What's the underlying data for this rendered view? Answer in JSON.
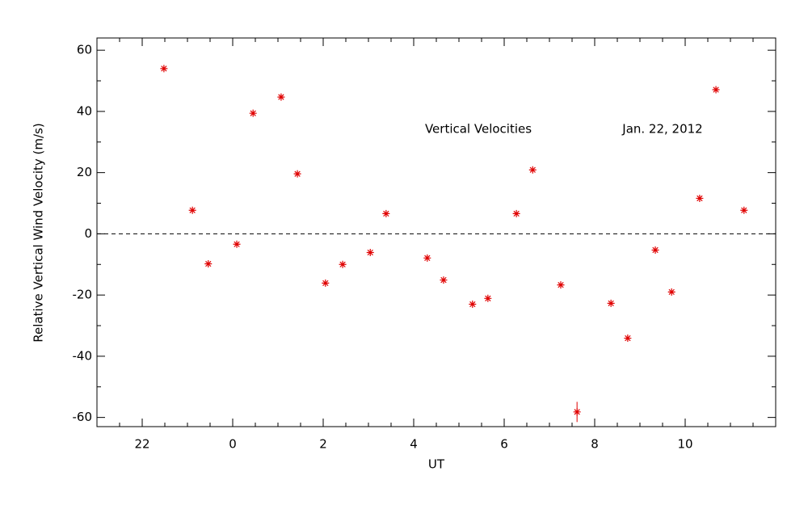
{
  "chart_data": {
    "type": "scatter",
    "y_label": "Relative Vertical Wind Velocity (m/s)",
    "x_label": "UT",
    "annotations": [
      "Vertical Velocities",
      "Jan. 22, 2012"
    ],
    "xlim": [
      21,
      36
    ],
    "ylim": [
      -63,
      64
    ],
    "xticks": [
      22,
      {
        "value": 24,
        "label": "0"
      },
      {
        "value": 26,
        "label": "2"
      },
      {
        "value": 28,
        "label": "4"
      },
      {
        "value": 30,
        "label": "6"
      },
      {
        "value": 32,
        "label": "8"
      },
      {
        "value": 34,
        "label": "10"
      }
    ],
    "yticks": [
      -60,
      -40,
      -20,
      0,
      20,
      40,
      60
    ],
    "reference_line": 0,
    "color": "#e00000",
    "x": [
      22.48,
      23.11,
      23.46,
      24.09,
      24.45,
      25.07,
      25.43,
      26.05,
      26.43,
      27.04,
      27.39,
      28.3,
      28.66,
      29.3,
      29.64,
      30.27,
      30.63,
      31.25,
      31.61,
      32.36,
      32.73,
      33.34,
      33.7,
      34.32,
      34.68,
      35.3
    ],
    "values": [
      54,
      7.7,
      -9.8,
      -3.4,
      39.4,
      44.7,
      19.6,
      -16.1,
      -10,
      -6.1,
      6.6,
      -7.9,
      -15.1,
      -23,
      -21.1,
      6.6,
      20.9,
      -16.7,
      -58.2,
      -22.7,
      -34.1,
      -5.3,
      -19,
      11.6,
      47.1,
      7.7
    ],
    "errors": [
      null,
      null,
      null,
      null,
      null,
      null,
      null,
      null,
      null,
      null,
      null,
      null,
      null,
      null,
      null,
      null,
      null,
      null,
      3.3,
      null,
      null,
      null,
      null,
      null,
      null,
      null
    ]
  }
}
